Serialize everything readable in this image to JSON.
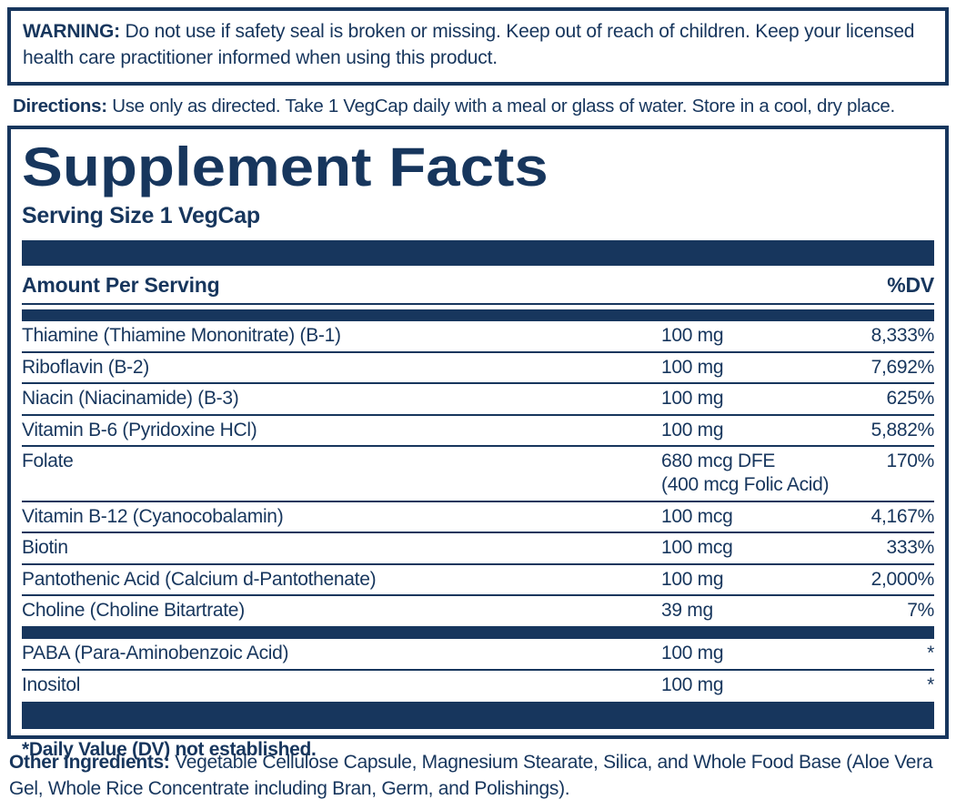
{
  "colors": {
    "navy": "#17365d",
    "background": "#ffffff"
  },
  "warning": {
    "label": "WARNING:",
    "text": "Do not use if safety seal is broken or missing. Keep out of reach of children. Keep your licensed health care practitioner informed when using this product."
  },
  "directions": {
    "label": "Directions:",
    "text": "Use only as directed. Take 1 VegCap daily with a meal or glass of water. Store in a cool, dry place."
  },
  "supplement_facts": {
    "title": "Supplement Facts",
    "serving_size": "Serving Size 1 VegCap",
    "amount_header": "Amount Per Serving",
    "dv_header": "%DV",
    "sections": [
      {
        "rows": [
          {
            "name": "Thiamine (Thiamine Mononitrate) (B-1)",
            "amount": "100 mg",
            "dv": "8,333%"
          },
          {
            "name": "Riboflavin (B-2)",
            "amount": "100 mg",
            "dv": "7,692%"
          },
          {
            "name": "Niacin (Niacinamide) (B-3)",
            "amount": "100 mg",
            "dv": "625%"
          },
          {
            "name": "Vitamin B-6 (Pyridoxine HCl)",
            "amount": "100 mg",
            "dv": "5,882%"
          },
          {
            "name": "Folate",
            "amount": "680 mcg DFE",
            "amount2": "(400 mcg Folic Acid)",
            "dv": "170%"
          },
          {
            "name": "Vitamin B-12 (Cyanocobalamin)",
            "amount": "100 mcg",
            "dv": "4,167%"
          },
          {
            "name": "Biotin",
            "amount": "100 mcg",
            "dv": "333%"
          },
          {
            "name": "Pantothenic Acid (Calcium d-Pantothenate)",
            "amount": "100 mg",
            "dv": "2,000%"
          },
          {
            "name": "Choline (Choline Bitartrate)",
            "amount": "39 mg",
            "dv": "7%"
          }
        ]
      },
      {
        "rows": [
          {
            "name": "PABA (Para-Aminobenzoic Acid)",
            "amount": "100 mg",
            "dv": "*"
          },
          {
            "name": "Inositol",
            "amount": "100 mg",
            "dv": "*"
          }
        ]
      }
    ],
    "footnote": "*Daily Value (DV) not established."
  },
  "other_ingredients": {
    "label": "Other Ingredients:",
    "text": "Vegetable Cellulose Capsule, Magnesium Stearate, Silica, and Whole Food Base (Aloe Vera Gel, Whole Rice Concentrate including Bran, Germ, and Polishings)."
  }
}
